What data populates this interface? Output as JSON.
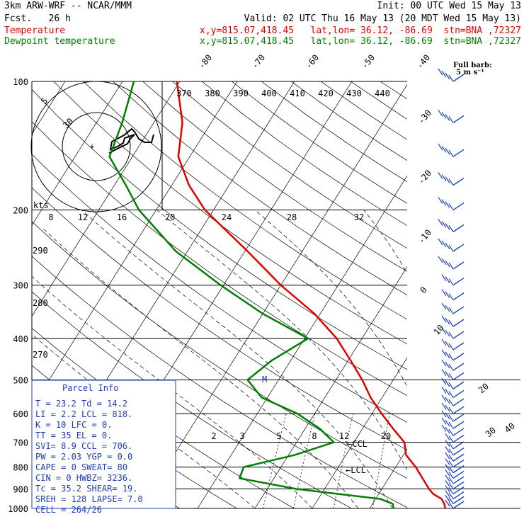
{
  "header": {
    "model": "3km ARW-WRF -- NCAR/MMM",
    "init": "Init: 00 UTC Wed 15 May 13",
    "fcst": "Fcst.   26 h",
    "valid": "Valid: 02 UTC Thu 16 May 13 (20 MDT Wed 15 May 13)",
    "temp_label": "Temperature",
    "temp_loc": "x,y=815.07,418.45   lat,lon= 36.12, -86.69  stn=BNA ,72327",
    "dew_label": "Dewpoint temperature",
    "dew_loc": "x,y=815.07,418.45   lat,lon= 36.12, -86.69  stn=BNA ,72327",
    "barb_legend": "Full barb:",
    "barb_units": "5 m s⁻¹"
  },
  "colors": {
    "temperature": "#e00000",
    "dewpoint": "#008000",
    "parcel_box": "#1d3fb5",
    "wind": "#1d3fb5"
  },
  "parcel": {
    "title": "Parcel Info",
    "rows": [
      "T  =    23.2  Td =  14.2",
      "LI =     2.2  LCL =  818.",
      "K  =      10  LFC =    0.",
      "TT =      35  EL  =    0.",
      "SVI=     8.9  CCL =  706.",
      "PW =    2.03  YGP =   0.0",
      "CAPE =     0  SWEAT=   80",
      "CIN =      0  HWBZ= 3236.",
      "Tc =    35.2  SHEAR=   19.",
      "SREH =   128  LAPSE=   7.0",
      "CELL = 264/26"
    ]
  },
  "chart_data": {
    "type": "line",
    "title": "",
    "yscale": "log",
    "ylim": [
      1000,
      100
    ],
    "pressure_ticks": [
      "100",
      "200",
      "300",
      "400",
      "500",
      "600",
      "700",
      "800",
      "900",
      "1000"
    ],
    "isotherm_labels": [
      "-80",
      "-70",
      "-60",
      "-50",
      "-40",
      "-30",
      "-20",
      "-10",
      "0",
      "10",
      "20",
      "30",
      "40"
    ],
    "theta_top_labels": [
      "370",
      "380",
      "390",
      "400",
      "410",
      "420",
      "430",
      "440"
    ],
    "theta_side_labels": [
      "290",
      "280",
      "270"
    ],
    "mixing_ratio_labels": [
      "2",
      "3",
      "5",
      "8",
      "12",
      "20"
    ],
    "hodograph": {
      "kts_label": "kts",
      "speed_ticks": [
        "8",
        "12",
        "16",
        "20",
        "24",
        "28",
        "32"
      ],
      "ring_labels": [
        "5",
        "30"
      ]
    },
    "level_markers": [
      "CCL",
      "LCL",
      "M"
    ],
    "series": [
      {
        "name": "Temperature",
        "points": [
          [
            1000,
            23.2
          ],
          [
            975,
            22.5
          ],
          [
            950,
            21.5
          ],
          [
            925,
            19.5
          ],
          [
            900,
            18.2
          ],
          [
            850,
            15.9
          ],
          [
            800,
            13.5
          ],
          [
            750,
            10.5
          ],
          [
            700,
            8.8
          ],
          [
            650,
            5.3
          ],
          [
            600,
            1.7
          ],
          [
            550,
            -2.0
          ],
          [
            500,
            -5.4
          ],
          [
            450,
            -9.6
          ],
          [
            400,
            -14.4
          ],
          [
            350,
            -21.0
          ],
          [
            300,
            -30.0
          ],
          [
            250,
            -39.5
          ],
          [
            200,
            -51.5
          ],
          [
            175,
            -57.0
          ],
          [
            150,
            -62.0
          ],
          [
            125,
            -65.0
          ],
          [
            100,
            -70.5
          ]
        ]
      },
      {
        "name": "Dewpoint temperature",
        "points": [
          [
            1000,
            14.2
          ],
          [
            975,
            13.5
          ],
          [
            950,
            10.8
          ],
          [
            925,
            3.0
          ],
          [
            900,
            -5.0
          ],
          [
            850,
            -16.0
          ],
          [
            800,
            -16.5
          ],
          [
            750,
            -9.0
          ],
          [
            700,
            -3.5
          ],
          [
            650,
            -7.5
          ],
          [
            600,
            -13.0
          ],
          [
            550,
            -21.0
          ],
          [
            500,
            -25.4
          ],
          [
            450,
            -23.3
          ],
          [
            400,
            -19.4
          ],
          [
            350,
            -30.0
          ],
          [
            300,
            -40.5
          ],
          [
            250,
            -52.0
          ],
          [
            200,
            -63.0
          ],
          [
            175,
            -68.0
          ],
          [
            150,
            -74.0
          ],
          [
            125,
            -75.5
          ],
          [
            100,
            -78.0
          ]
        ]
      }
    ]
  }
}
